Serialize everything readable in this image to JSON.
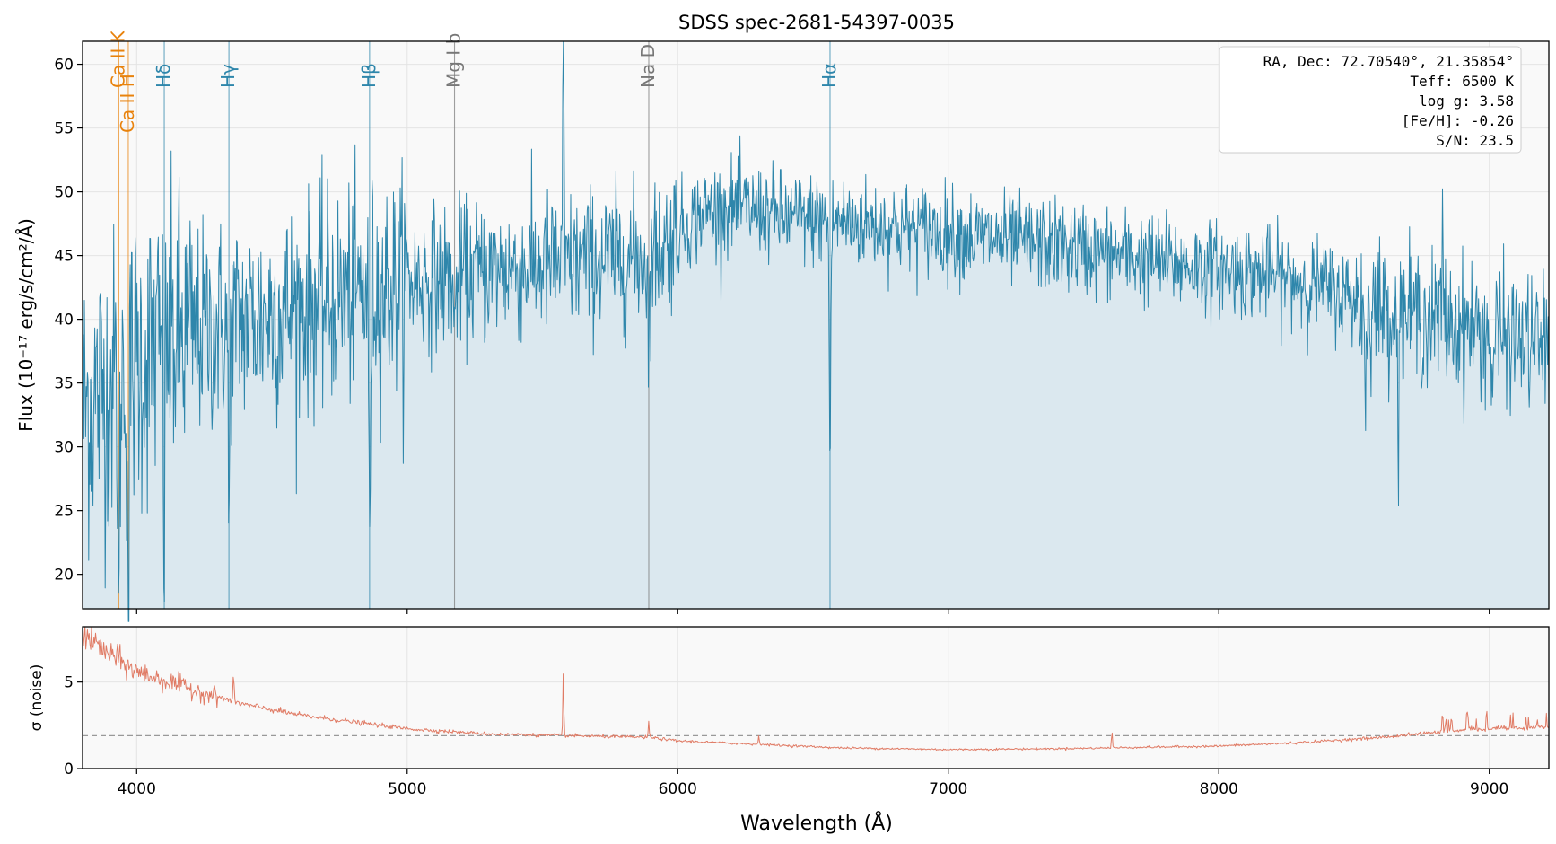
{
  "chart_data": [
    {
      "type": "line",
      "title": "SDSS spec-2681-54397-0035",
      "xlabel": "",
      "ylabel": "Flux (10⁻¹⁷ erg/s/cm²/Å)",
      "xlim": [
        3800,
        9220
      ],
      "ylim": [
        17.3,
        61.8
      ],
      "yticks": [
        20,
        25,
        30,
        35,
        40,
        45,
        50,
        55,
        60
      ],
      "xticks": [
        4000,
        5000,
        6000,
        7000,
        8000,
        9000
      ],
      "grid": true,
      "fill_under": true,
      "colors": {
        "line": "#2e86ab",
        "fill": "#dbe8ef",
        "background": "#f9f9f9"
      },
      "continuum": {
        "x": [
          3800,
          3950,
          4100,
          4300,
          4500,
          4800,
          5000,
          5300,
          5600,
          5900,
          6000,
          6100,
          6200,
          6300,
          6400,
          6600,
          6800,
          7000,
          7200,
          7500,
          7800,
          8000,
          8200,
          8400,
          8600,
          8800,
          9000,
          9220
        ],
        "y": [
          33,
          36,
          38,
          39.5,
          40.5,
          42,
          43,
          43.8,
          44.5,
          45,
          47,
          48.5,
          48.8,
          48.5,
          48,
          47.7,
          47.3,
          46.8,
          46.2,
          45.5,
          44.5,
          44,
          43.5,
          42.5,
          41,
          40,
          39,
          38
        ]
      },
      "noise_amplitude_notes": "noisy spectrum; amplitude decreasing from blue to red",
      "absorption_features": [
        {
          "x": 3934,
          "depth": 22
        },
        {
          "x": 3969,
          "depth": 20
        },
        {
          "x": 4102,
          "depth": 14
        },
        {
          "x": 4341,
          "depth": 16
        },
        {
          "x": 4861,
          "depth": 20
        },
        {
          "x": 5175,
          "depth": 6
        },
        {
          "x": 5893,
          "depth": 8
        },
        {
          "x": 6563,
          "depth": 19
        },
        {
          "x": 8542,
          "depth": 9
        },
        {
          "x": 8662,
          "depth": 8
        },
        {
          "x": 9010,
          "depth": 6
        }
      ],
      "emission_features": [
        {
          "x": 5577,
          "height": 16
        },
        {
          "x": 8827,
          "height": 8
        }
      ],
      "line_markers": [
        {
          "label": "Ca II K",
          "x": 3934,
          "color": "#e8820c",
          "pos": "top"
        },
        {
          "label": "Ca II H",
          "x": 3969,
          "color": "#e8820c",
          "pos": "low"
        },
        {
          "label": "Hδ",
          "x": 4102,
          "color": "#2e86ab",
          "pos": "top"
        },
        {
          "label": "Hγ",
          "x": 4341,
          "color": "#2e86ab",
          "pos": "top"
        },
        {
          "label": "Hβ",
          "x": 4861,
          "color": "#2e86ab",
          "pos": "top"
        },
        {
          "label": "Mg I b",
          "x": 5175,
          "color": "#777777",
          "pos": "top"
        },
        {
          "label": "Na D",
          "x": 5893,
          "color": "#777777",
          "pos": "top"
        },
        {
          "label": "Hα",
          "x": 6563,
          "color": "#2e86ab",
          "pos": "top"
        }
      ],
      "info_box": {
        "placement": "top-right",
        "lines": [
          "RA, Dec: 72.70540°, 21.35854°",
          "Teff: 6500 K",
          "log g: 3.58",
          "[Fe/H]: -0.26",
          "S/N: 23.5"
        ]
      }
    },
    {
      "type": "line",
      "title": "",
      "xlabel": "Wavelength (Å)",
      "ylabel": "σ (noise)",
      "xlim": [
        3800,
        9220
      ],
      "ylim": [
        0,
        8.2
      ],
      "yticks": [
        0,
        5
      ],
      "xticks": [
        4000,
        5000,
        6000,
        7000,
        8000,
        9000
      ],
      "grid": true,
      "colors": {
        "line": "#e07b65",
        "reference": "#999999",
        "background": "#f9f9f9"
      },
      "reference_line": 1.9,
      "trend": {
        "x": [
          3800,
          3900,
          4000,
          4200,
          4400,
          4600,
          4800,
          5000,
          5300,
          5600,
          5900,
          6000,
          6300,
          6600,
          7000,
          7400,
          7800,
          8000,
          8300,
          8600,
          8800,
          9000,
          9220
        ],
        "y": [
          7.8,
          6.6,
          5.6,
          4.6,
          3.7,
          3.1,
          2.7,
          2.3,
          2.0,
          1.9,
          1.8,
          1.6,
          1.4,
          1.2,
          1.1,
          1.15,
          1.25,
          1.3,
          1.5,
          1.8,
          2.1,
          2.3,
          2.4
        ]
      },
      "spikes": [
        {
          "x": 5577,
          "height": 3.6
        },
        {
          "x": 5893,
          "height": 0.9
        },
        {
          "x": 6300,
          "height": 0.6
        },
        {
          "x": 7605,
          "height": 1.0
        },
        {
          "x": 4358,
          "height": 1.5
        },
        {
          "x": 8827,
          "height": 1.3
        },
        {
          "x": 8920,
          "height": 1.2
        },
        {
          "x": 8990,
          "height": 1.1
        },
        {
          "x": 8860,
          "height": 1.0
        }
      ]
    }
  ]
}
